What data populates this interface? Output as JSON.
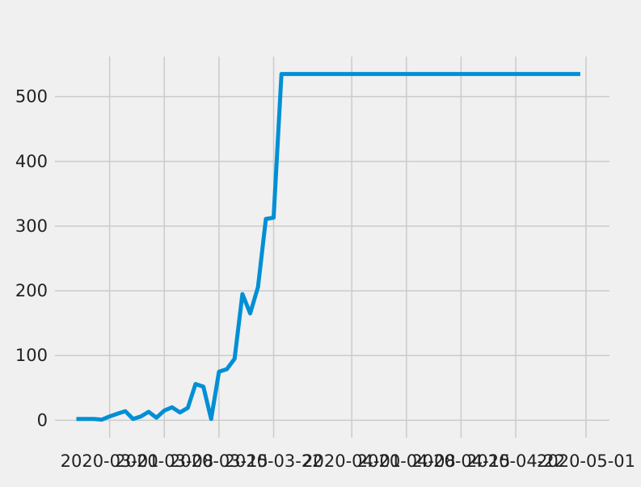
{
  "chart_data": {
    "type": "line",
    "title": "",
    "xlabel": "",
    "ylabel": "",
    "grid": true,
    "x_ticks": [
      "2020-03-01",
      "2020-03-08",
      "2020-03-15",
      "2020-03-22",
      "2020-04-01",
      "2020-04-08",
      "2020-04-15",
      "2020-04-22",
      "2020-05-01"
    ],
    "y_ticks": [
      0,
      100,
      200,
      300,
      400,
      500
    ],
    "xlim": [
      "2020-02-23",
      "2020-05-04"
    ],
    "ylim": [
      -27,
      562
    ],
    "series": [
      {
        "color": "#008fd5",
        "x": [
          "2020-02-26",
          "2020-02-27",
          "2020-02-28",
          "2020-02-29",
          "2020-03-01",
          "2020-03-02",
          "2020-03-03",
          "2020-03-04",
          "2020-03-05",
          "2020-03-06",
          "2020-03-07",
          "2020-03-08",
          "2020-03-09",
          "2020-03-10",
          "2020-03-11",
          "2020-03-12",
          "2020-03-13",
          "2020-03-14",
          "2020-03-15",
          "2020-03-16",
          "2020-03-17",
          "2020-03-18",
          "2020-03-19",
          "2020-03-20",
          "2020-03-21",
          "2020-03-22",
          "2020-03-23",
          "2020-03-24",
          "2020-03-25",
          "2020-03-26",
          "2020-03-27",
          "2020-03-28",
          "2020-03-29",
          "2020-03-30",
          "2020-03-31",
          "2020-04-01",
          "2020-04-30"
        ],
        "y": [
          2,
          2,
          2,
          1,
          6,
          10,
          14,
          2,
          6,
          13,
          4,
          15,
          20,
          12,
          19,
          56,
          52,
          2,
          75,
          79,
          95,
          195,
          165,
          206,
          311,
          313,
          535,
          535,
          535,
          535,
          535,
          535,
          535,
          535,
          535,
          535,
          535
        ]
      }
    ]
  }
}
